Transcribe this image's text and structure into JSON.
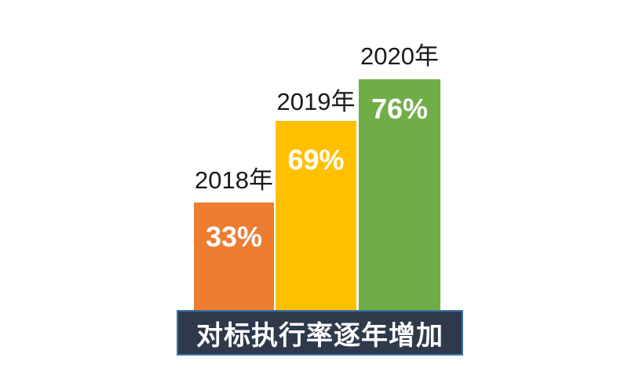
{
  "chart_data": {
    "type": "bar",
    "categories": [
      "2018年",
      "2019年",
      "2020年"
    ],
    "values": [
      33,
      69,
      76
    ],
    "value_labels": [
      "33%",
      "69%",
      "76%"
    ],
    "series_colors": [
      "#ED7D31",
      "#FFC000",
      "#70AD47"
    ],
    "title": "对标执行率逐年增加",
    "xlabel": "",
    "ylabel": "",
    "ylim": [
      0,
      100
    ],
    "grid": false,
    "legend_position": "none",
    "annotations": "value labels shown in white inside top of each bar; year labels above bars; title shown in dark banner below bars"
  },
  "bars": [
    {
      "year": "2018年",
      "value": "33%",
      "color": "#ED7D31"
    },
    {
      "year": "2019年",
      "value": "69%",
      "color": "#FFC000"
    },
    {
      "year": "2020年",
      "value": "76%",
      "color": "#70AD47"
    }
  ],
  "banner": {
    "label": "对标执行率逐年增加",
    "background": "#2E3A4B",
    "border_color": "#3A74A8",
    "text_color": "#FFFFFF"
  },
  "canvas": {
    "background": "#FFFFFF"
  }
}
